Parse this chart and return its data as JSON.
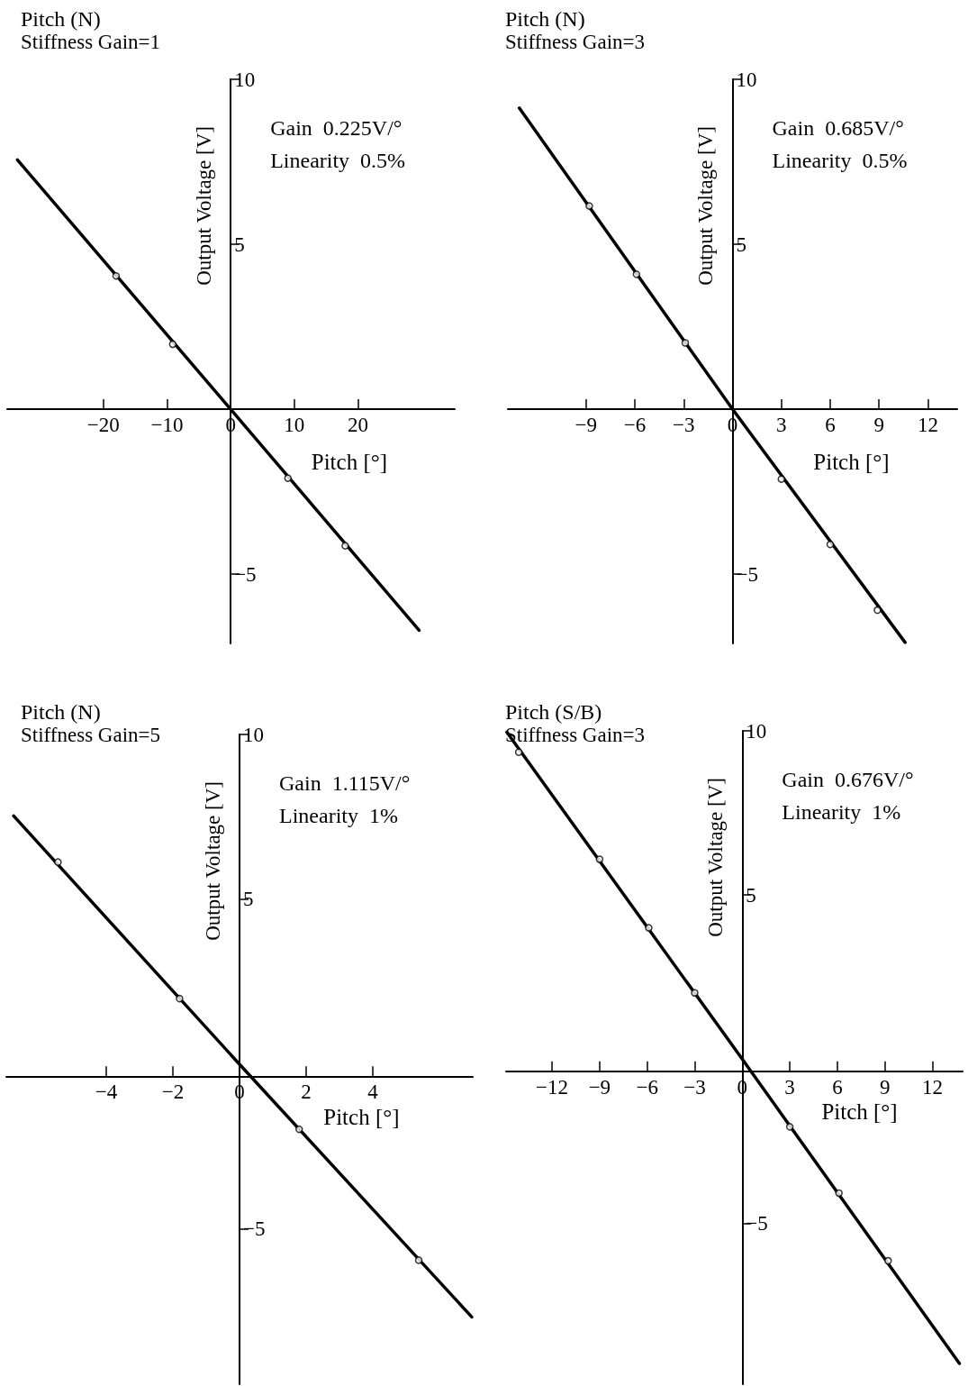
{
  "chart_data": [
    {
      "type": "line",
      "title": "Pitch (N)",
      "subtitle": "Stiffness Gain=1",
      "xlabel": "Pitch [°]",
      "ylabel": "Output Voltage [V]",
      "annotations": [
        "Gain  0.225V/°",
        "Linearity  0.5%"
      ],
      "grid": false,
      "xlim": [
        -35.1,
        35.2
      ],
      "ylim": [
        -7.1,
        10
      ],
      "xticks": [
        -20,
        -10,
        0,
        10,
        20
      ],
      "yticks": [
        10,
        5,
        -5
      ],
      "series": [
        {
          "type": "line",
          "color": "#000000",
          "marker": "none",
          "x": [
            -33.5,
            0,
            29.6
          ],
          "values": [
            7.56,
            0,
            -6.7
          ]
        },
        {
          "type": "scatter",
          "color": "#000000",
          "marker": "circle",
          "x": [
            -18.0,
            -9.1,
            9.0,
            18.0
          ],
          "values": [
            4.04,
            1.97,
            -2.09,
            -4.14
          ]
        }
      ]
    },
    {
      "type": "line",
      "title": "Pitch (N)",
      "subtitle": "Stiffness Gain=3",
      "xlabel": "Pitch [°]",
      "ylabel": "Output Voltage [V]",
      "annotations": [
        "Gain  0.685V/°",
        "Linearity  0.5%"
      ],
      "grid": false,
      "xlim": [
        -13.8,
        13.8
      ],
      "ylim": [
        -7.1,
        10
      ],
      "xticks": [
        -9,
        -6,
        -3,
        0,
        3,
        6,
        9,
        12
      ],
      "yticks": [
        10,
        5,
        -5
      ],
      "series": [
        {
          "type": "line",
          "color": "#000000",
          "marker": "none",
          "x": [
            -13.1,
            0,
            10.6
          ],
          "values": [
            9.13,
            0,
            -7.07
          ]
        },
        {
          "type": "scatter",
          "color": "#000000",
          "marker": "circle",
          "x": [
            -8.8,
            -5.9,
            -2.9,
            3.0,
            6.0,
            8.9
          ],
          "values": [
            6.16,
            4.09,
            2.01,
            -2.12,
            -4.1,
            -6.09
          ]
        }
      ]
    },
    {
      "type": "line",
      "title": "Pitch (N)",
      "subtitle": "Stiffness Gain=5",
      "xlabel": "Pitch [°]",
      "ylabel": "Output Voltage [V]",
      "annotations": [
        "Gain  1.115V/°",
        "Linearity  1%"
      ],
      "grid": false,
      "xlim": [
        -7.0,
        7.0
      ],
      "ylim": [
        -9.7,
        10
      ],
      "xticks": [
        -4,
        -2,
        0,
        2,
        4
      ],
      "yticks": [
        10,
        5,
        -5
      ],
      "series": [
        {
          "type": "line",
          "color": "#000000",
          "marker": "none",
          "x": [
            -6.78,
            0,
            6.97
          ],
          "values": [
            7.53,
            0,
            -7.66
          ]
        },
        {
          "type": "scatter",
          "color": "#000000",
          "marker": "circle",
          "x": [
            -5.45,
            -1.8,
            1.79,
            5.38
          ],
          "values": [
            6.13,
            1.99,
            -1.97,
            -5.94
          ]
        }
      ]
    },
    {
      "type": "line",
      "title": "Pitch (S/B)",
      "subtitle": "Stiffness Gain=3",
      "xlabel": "Pitch [°]",
      "ylabel": "Output Voltage [V]",
      "annotations": [
        "Gain  0.676V/°",
        "Linearity  1%"
      ],
      "grid": false,
      "xlim": [
        -14.9,
        13.9
      ],
      "ylim": [
        -9.9,
        10
      ],
      "xticks": [
        -12,
        -9,
        -6,
        -3,
        0,
        3,
        6,
        9,
        12
      ],
      "yticks": [
        10,
        5,
        -5
      ],
      "series": [
        {
          "type": "line",
          "color": "#000000",
          "marker": "none",
          "x": [
            -14.85,
            0,
            13.7
          ],
          "values": [
            9.96,
            0,
            -9.27
          ]
        },
        {
          "type": "scatter",
          "color": "#000000",
          "marker": "circle",
          "x": [
            -14.1,
            -9.0,
            -5.9,
            -3.0,
            3.0,
            6.1,
            9.2
          ],
          "values": [
            9.35,
            6.09,
            4.0,
            2.02,
            -2.06,
            -4.08,
            -6.14
          ]
        }
      ]
    }
  ]
}
